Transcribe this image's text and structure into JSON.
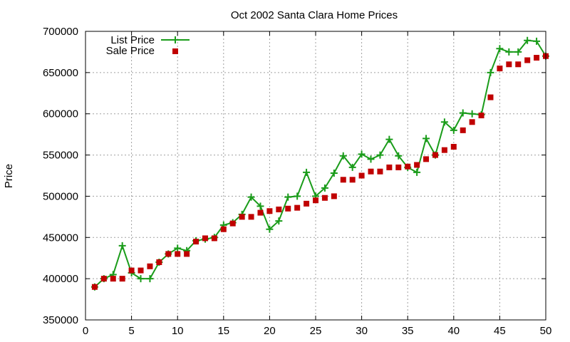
{
  "chart_data": {
    "type": "line",
    "title": "Oct 2002 Santa Clara Home Prices",
    "xlabel": "",
    "ylabel": "Price",
    "xlim": [
      0,
      50
    ],
    "ylim": [
      350000,
      700000
    ],
    "xticks": [
      0,
      5,
      10,
      15,
      20,
      25,
      30,
      35,
      40,
      45,
      50
    ],
    "yticks": [
      350000,
      400000,
      450000,
      500000,
      550000,
      600000,
      650000,
      700000
    ],
    "xtick_labels": [
      "0",
      "5",
      "10",
      "15",
      "20",
      "25",
      "30",
      "35",
      "40",
      "45",
      "50"
    ],
    "ytick_labels": [
      "350000",
      "400000",
      "450000",
      "500000",
      "550000",
      "600000",
      "650000",
      "700000"
    ],
    "grid": true,
    "legend_position": "top-left",
    "colors": {
      "list": "#1a9c1a",
      "sale": "#c00000"
    },
    "x": [
      1,
      2,
      3,
      4,
      5,
      6,
      7,
      8,
      9,
      10,
      11,
      12,
      13,
      14,
      15,
      16,
      17,
      18,
      19,
      20,
      21,
      22,
      23,
      24,
      25,
      26,
      27,
      28,
      29,
      30,
      31,
      32,
      33,
      34,
      35,
      36,
      37,
      38,
      39,
      40,
      41,
      42,
      43,
      44,
      45,
      46,
      47,
      48,
      49,
      50
    ],
    "series": [
      {
        "name": "List Price",
        "style": "linespoints",
        "values": [
          390000,
          400000,
          405000,
          440000,
          407000,
          400000,
          400000,
          420000,
          430000,
          437000,
          434000,
          446000,
          448000,
          450000,
          465000,
          468000,
          478000,
          499000,
          488000,
          460000,
          470000,
          499000,
          500000,
          529000,
          500000,
          510000,
          528000,
          549000,
          535000,
          551000,
          545000,
          550000,
          569000,
          549000,
          535000,
          529000,
          570000,
          550000,
          590000,
          580000,
          601000,
          600000,
          599000,
          650000,
          679000,
          675000,
          675000,
          689000,
          688000,
          670000
        ]
      },
      {
        "name": "Sale Price",
        "style": "points",
        "values": [
          390000,
          400000,
          400000,
          400000,
          410000,
          410000,
          415000,
          420000,
          430000,
          430000,
          430000,
          445000,
          449000,
          449000,
          460000,
          467000,
          475000,
          475000,
          480000,
          482000,
          484000,
          485000,
          486000,
          491000,
          495000,
          498000,
          500000,
          520000,
          520000,
          525000,
          530000,
          530000,
          535000,
          535000,
          536000,
          538000,
          545000,
          550000,
          556000,
          560000,
          580000,
          590000,
          598000,
          620000,
          655000,
          660000,
          660000,
          665000,
          668000,
          670000
        ]
      }
    ]
  }
}
